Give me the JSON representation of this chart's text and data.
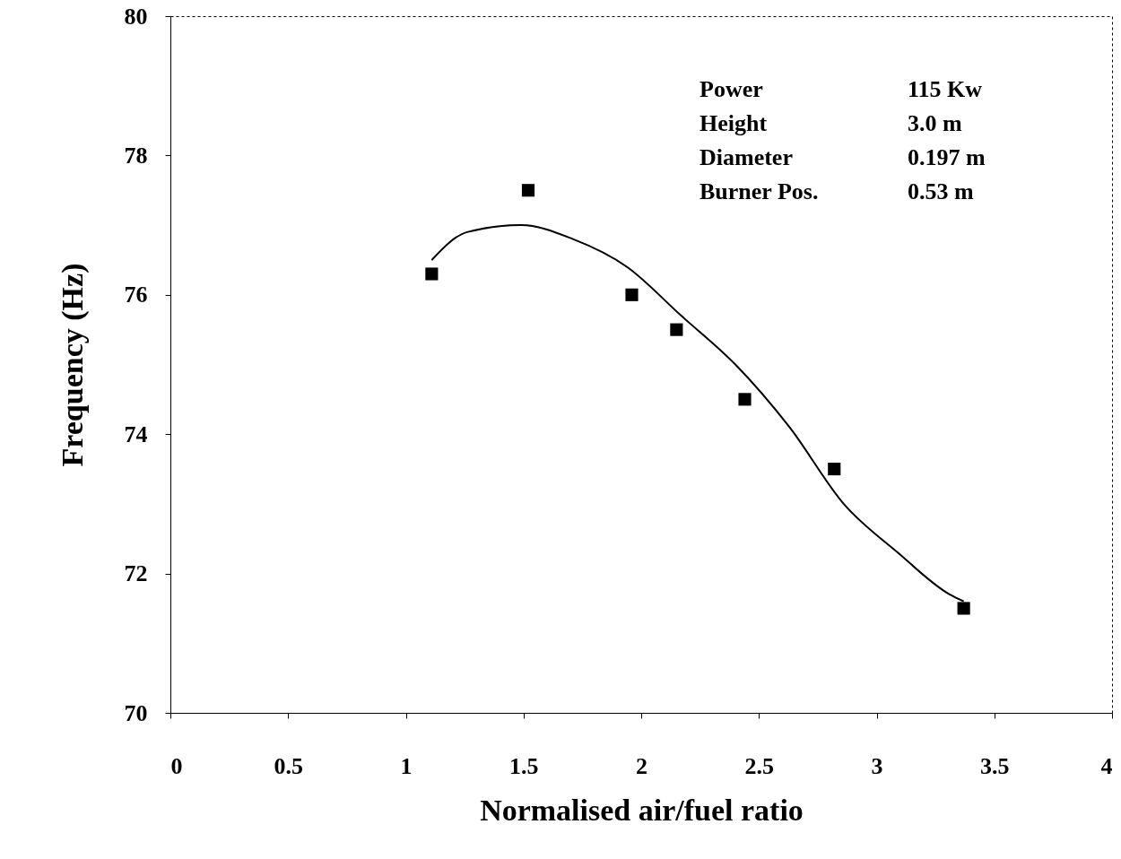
{
  "chart_data": {
    "type": "scatter",
    "xlabel": "Normalised air/fuel ratio",
    "ylabel": "Frequency (Hz)",
    "xlim": [
      0,
      4
    ],
    "xticks": [
      0,
      0.5,
      1,
      1.5,
      2,
      2.5,
      3,
      3.5,
      4
    ],
    "ylim": [
      70,
      80
    ],
    "yticks": [
      70,
      72,
      74,
      76,
      78,
      80
    ],
    "grid": false,
    "annotations": [
      "Power",
      "115 Kw",
      "Height",
      "3.0 m",
      "Diameter",
      "0.197 m",
      "Burner Pos.",
      "0.53 m"
    ],
    "series": [
      {
        "color": "#000000",
        "marker": "square",
        "x": [
          1.11,
          1.52,
          1.96,
          2.15,
          2.44,
          2.82,
          3.37
        ],
        "values": [
          76.3,
          77.5,
          76.0,
          75.5,
          74.5,
          73.5,
          71.5
        ]
      },
      {
        "type": "line",
        "color": "#000000",
        "line_style": "solid",
        "marker": "none",
        "x": [
          1.11,
          1.26,
          1.49,
          1.71,
          1.94,
          2.17,
          2.4,
          2.63,
          2.86,
          3.09,
          3.31,
          3.37
        ],
        "values": [
          76.5,
          76.9,
          77.0,
          76.8,
          76.4,
          75.7,
          75.0,
          74.1,
          73.0,
          72.3,
          71.7,
          71.6
        ]
      }
    ]
  }
}
